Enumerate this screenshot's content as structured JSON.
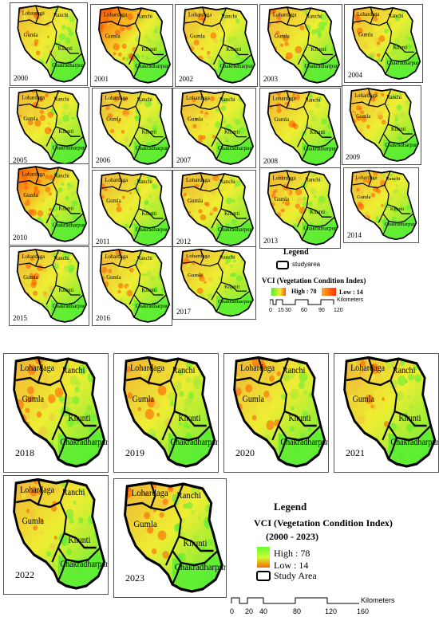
{
  "top_figure": {
    "district_labels": [
      "Lohardaga",
      "Ranchi",
      "Gumla",
      "Khunti",
      "Chakradharpur"
    ],
    "years": [
      "2000",
      "2001",
      "2002",
      "2003",
      "2004",
      "2005",
      "2006",
      "2007",
      "2008",
      "2009",
      "2010",
      "2011",
      "2012",
      "2013",
      "2014",
      "2015",
      "2016",
      "2017"
    ],
    "legend": {
      "title": "Legend",
      "study_area": "studyarea",
      "index_title": "VCI (Vegetation Condition Index)",
      "high": "High : 78",
      "low": "Low : 14",
      "scale_unit": "Kilometers",
      "scale_ticks": [
        "0",
        "15",
        "30",
        "60",
        "90",
        "120"
      ]
    }
  },
  "bottom_figure": {
    "district_labels": [
      "Lohardaga",
      "Ranchi",
      "Gumla",
      "Khunti",
      "Chakradharpur"
    ],
    "years": [
      "2018",
      "2019",
      "2020",
      "2021",
      "2022",
      "2023"
    ],
    "legend": {
      "title": "Legend",
      "index_title": "VCI (Vegetation Condition Index)",
      "period": "(2000 - 2023)",
      "high": "High : 78",
      "low": "Low : 14",
      "study_area": "Study Area",
      "scale_unit": "Kilometers",
      "scale_ticks": [
        "0",
        "20",
        "40",
        "80",
        "120",
        "160"
      ]
    }
  },
  "colors": {
    "high": "#55ee33",
    "mid": "#eeee33",
    "low": "#ff5500"
  },
  "panel_dryness": {
    "2000": 0.45,
    "2001": 0.85,
    "2002": 0.35,
    "2003": 0.5,
    "2004": 0.4,
    "2005": 0.55,
    "2006": 0.3,
    "2007": 0.5,
    "2008": 0.4,
    "2009": 0.45,
    "2010": 0.8,
    "2011": 0.35,
    "2012": 0.4,
    "2013": 0.45,
    "2014": 0.5,
    "2015": 0.45,
    "2016": 0.4,
    "2017": 0.4,
    "2018": 0.5,
    "2019": 0.45,
    "2020": 0.5,
    "2021": 0.25,
    "2022": 0.4,
    "2023": 0.55
  }
}
